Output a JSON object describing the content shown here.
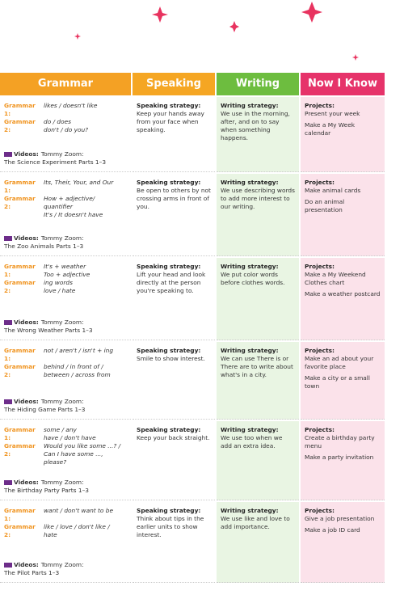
{
  "header": [
    "Grammar",
    "Speaking",
    "Writing",
    "Now I Know"
  ],
  "rows": [
    {
      "grammar": [
        {
          "label": "Grammar 1:",
          "lines": [
            "likes / doesn't like"
          ]
        },
        {
          "label": "Grammar 2:",
          "lines": [
            "do / does",
            "don't / do you?"
          ]
        }
      ],
      "video_label": "Videos:",
      "video": [
        "Tommy Zoom:",
        "The Science Experiment Parts 1–3"
      ],
      "speaking": {
        "label": "Speaking strategy:",
        "text": "Keep your hands away from your face when speaking."
      },
      "writing": {
        "label": "Writing strategy:",
        "text": "We use in the morning, after, and on to say when something happens."
      },
      "now": {
        "label": "Projects:",
        "items": [
          "Present your week",
          "Make a My Week calendar"
        ]
      }
    },
    {
      "grammar": [
        {
          "label": "Grammar 1:",
          "lines": [
            "Its, Their, Your, and Our"
          ]
        },
        {
          "label": "Grammar 2:",
          "lines": [
            "How + adjective/",
            "quantifier",
            "It's / It doesn't have"
          ]
        }
      ],
      "video_label": "Videos:",
      "video": [
        "Tommy Zoom:",
        "The Zoo Animals Parts 1–3"
      ],
      "speaking": {
        "label": "Speaking strategy:",
        "text": "Be open to others by not crossing arms in front of you."
      },
      "writing": {
        "label": "Writing strategy:",
        "text": "We use describing words to add more interest to our writing."
      },
      "now": {
        "label": "Projects:",
        "items": [
          "Make animal cards",
          "Do an animal presentation"
        ]
      }
    },
    {
      "grammar": [
        {
          "label": "Grammar 1:",
          "lines": [
            "It's + weather",
            "Too + adjective"
          ]
        },
        {
          "label": "Grammar 2:",
          "lines": [
            "ing words",
            "love / hate"
          ]
        }
      ],
      "video_label": "Videos:",
      "video": [
        "Tommy Zoom:",
        "The Wrong Weather Parts 1–3"
      ],
      "speaking": {
        "label": "Speaking strategy:",
        "text": "Lift your head and look directly at the person you're speaking to."
      },
      "writing": {
        "label": "Writing strategy:",
        "text": "We put color words before clothes words."
      },
      "now": {
        "label": "Projects:",
        "items": [
          "Make a My Weekend Clothes chart",
          "Make a weather postcard"
        ]
      }
    },
    {
      "grammar": [
        {
          "label": "Grammar 1:",
          "lines": [
            "not / aren't / isn't + ing"
          ]
        },
        {
          "label": "Grammar 2:",
          "lines": [
            "behind / in front of /",
            "between / across from"
          ]
        }
      ],
      "video_label": "Videos:",
      "video": [
        "Tommy Zoom:",
        "The Hiding Game Parts 1–3"
      ],
      "speaking": {
        "label": "Speaking strategy:",
        "text": "Smile to show interest."
      },
      "writing": {
        "label": "Writing strategy:",
        "text": "We can use There is or There are to write about what's in a city."
      },
      "now": {
        "label": "Projects:",
        "items": [
          "Make an ad about your favorite place",
          "Make a city or a small town"
        ]
      }
    },
    {
      "grammar": [
        {
          "label": "Grammar 1:",
          "lines": [
            "some / any",
            "have / don't have"
          ]
        },
        {
          "label": "Grammar 2:",
          "lines": [
            "Would you like some ...? /",
            "Can I have some ...,",
            "please?"
          ]
        }
      ],
      "video_label": "Videos:",
      "video": [
        "Tommy Zoom:",
        "The Birthday Party Parts 1–3"
      ],
      "speaking": {
        "label": "Speaking strategy:",
        "text": "Keep your back straight."
      },
      "writing": {
        "label": "Writing strategy:",
        "text": "We use too when we add an extra idea."
      },
      "now": {
        "label": "Projects:",
        "items": [
          "Create a birthday party menu",
          "Make a party invitation"
        ]
      }
    },
    {
      "grammar": [
        {
          "label": "Grammar 1:",
          "lines": [
            "want / don't want to be"
          ]
        },
        {
          "label": "Grammar 2:",
          "lines": [
            "like / love / don't like /",
            "hate"
          ]
        }
      ],
      "video_label": "Videos:",
      "video": [
        "Tommy Zoom:",
        "The Pilot Parts 1–3"
      ],
      "speaking": {
        "label": "Speaking strategy:",
        "text": "Think about tips in the earlier units to show interest."
      },
      "writing": {
        "label": "Writing strategy:",
        "text": "We use like and love to add importance."
      },
      "now": {
        "label": "Projects:",
        "items": [
          "Give a job presentation",
          "Make a job ID card"
        ]
      }
    }
  ]
}
